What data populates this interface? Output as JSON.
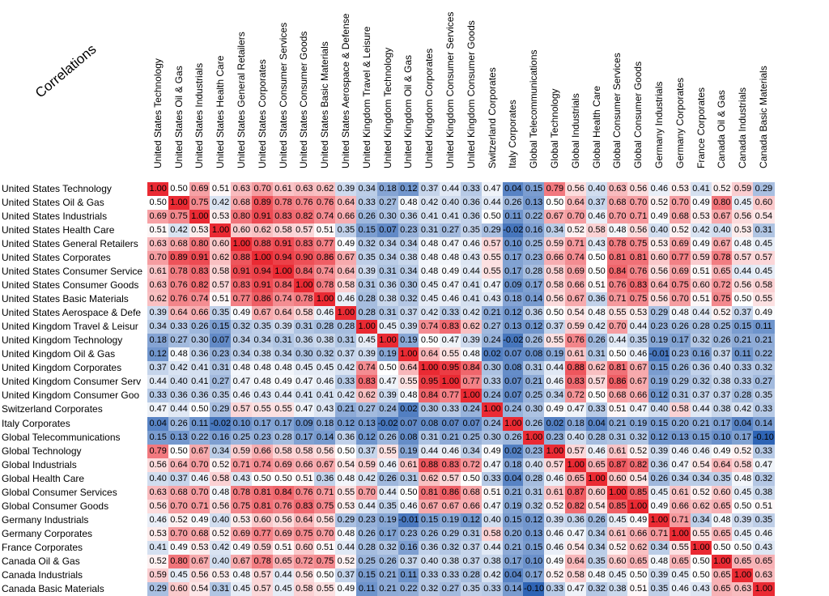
{
  "chart_data": {
    "type": "heatmap",
    "title": "Correlations",
    "color_scale": {
      "low": "#2e64b5",
      "mid": "#ffffff",
      "high": "#ea2a33",
      "min": -0.1,
      "mid_value": 0.5,
      "max": 1.0
    },
    "labels": [
      "United States Technology",
      "United States Oil & Gas",
      "United States Industrials",
      "United States Health Care",
      "United States General Retailers",
      "United States Corporates",
      "United States Consumer Services",
      "United States Consumer Goods",
      "United States Basic Materials",
      "United States Aerospace & Defense",
      "United Kingdom Travel & Leisure",
      "United Kingdom Technology",
      "United Kingdom Oil & Gas",
      "United Kingdom Corporates",
      "United Kingdom Consumer Services",
      "United Kingdom Consumer Goods",
      "Switzerland Corporates",
      "Italy Corporates",
      "Global Telecommunications",
      "Global Technology",
      "Global Industrials",
      "Global Health Care",
      "Global Consumer Services",
      "Global Consumer Goods",
      "Germany Industrials",
      "Germany Corporates",
      "France Corporates",
      "Canada Oil & Gas",
      "Canada Industrials",
      "Canada Basic Materials"
    ],
    "row_labels": [
      "United States Technology",
      "United States Oil & Gas",
      "United States Industrials",
      "United States Health Care",
      "United States General Retailers",
      "United States Corporates",
      "United States Consumer Service",
      "United States Consumer Goods",
      "United States Basic Materials",
      "United States Aerospace & Defe",
      "United Kingdom Travel & Leisur",
      "United Kingdom Technology",
      "United Kingdom Oil & Gas",
      "United Kingdom Corporates",
      "United Kingdom Consumer Serv",
      "United Kingdom Consumer Goo",
      "Switzerland Corporates",
      "Italy Corporates",
      "Global Telecommunications",
      "Global Technology",
      "Global Industrials",
      "Global Health Care",
      "Global Consumer Services",
      "Global Consumer Goods",
      "Germany Industrials",
      "Germany Corporates",
      "France Corporates",
      "Canada Oil & Gas",
      "Canada Industrials",
      "Canada Basic Materials"
    ],
    "values": [
      [
        "1.00",
        "0.50",
        "0.69",
        "0.51",
        "0.63",
        "0.70",
        "0.61",
        "0.63",
        "0.62",
        "0.39",
        "0.34",
        "0.18",
        "0.12",
        "0.37",
        "0.44",
        "0.33",
        "0.47",
        "0.04",
        "0.15",
        "0.79",
        "0.56",
        "0.40",
        "0.63",
        "0.56",
        "0.46",
        "0.53",
        "0.41",
        "0.52",
        "0.59",
        "0.29"
      ],
      [
        "0.50",
        "1.00",
        "0.75",
        "0.42",
        "0.68",
        "0.89",
        "0.78",
        "0.76",
        "0.76",
        "0.64",
        "0.33",
        "0.27",
        "0.48",
        "0.42",
        "0.40",
        "0.36",
        "0.44",
        "0.26",
        "0.13",
        "0.50",
        "0.64",
        "0.37",
        "0.68",
        "0.70",
        "0.52",
        "0.70",
        "0.49",
        "0.80",
        "0.45",
        "0.60"
      ],
      [
        "0.69",
        "0.75",
        "1.00",
        "0.53",
        "0.80",
        "0.91",
        "0.83",
        "0.82",
        "0.74",
        "0.66",
        "0.26",
        "0.30",
        "0.36",
        "0.41",
        "0.41",
        "0.36",
        "0.50",
        "0.11",
        "0.22",
        "0.67",
        "0.70",
        "0.46",
        "0.70",
        "0.71",
        "0.49",
        "0.68",
        "0.53",
        "0.67",
        "0.56",
        "0.54"
      ],
      [
        "0.51",
        "0.42",
        "0.53",
        "1.00",
        "0.60",
        "0.62",
        "0.58",
        "0.57",
        "0.51",
        "0.35",
        "0.15",
        "0.07",
        "0.23",
        "0.31",
        "0.27",
        "0.35",
        "0.29",
        "-0.02",
        "0.16",
        "0.34",
        "0.52",
        "0.58",
        "0.48",
        "0.56",
        "0.40",
        "0.52",
        "0.42",
        "0.40",
        "0.53",
        "0.31"
      ],
      [
        "0.63",
        "0.68",
        "0.80",
        "0.60",
        "1.00",
        "0.88",
        "0.91",
        "0.83",
        "0.77",
        "0.49",
        "0.32",
        "0.34",
        "0.34",
        "0.48",
        "0.47",
        "0.46",
        "0.57",
        "0.10",
        "0.25",
        "0.59",
        "0.71",
        "0.43",
        "0.78",
        "0.75",
        "0.53",
        "0.69",
        "0.49",
        "0.67",
        "0.48",
        "0.45"
      ],
      [
        "0.70",
        "0.89",
        "0.91",
        "0.62",
        "0.88",
        "1.00",
        "0.94",
        "0.90",
        "0.86",
        "0.67",
        "0.35",
        "0.34",
        "0.38",
        "0.48",
        "0.48",
        "0.43",
        "0.55",
        "0.17",
        "0.23",
        "0.66",
        "0.74",
        "0.50",
        "0.81",
        "0.81",
        "0.60",
        "0.77",
        "0.59",
        "0.78",
        "0.57",
        "0.57"
      ],
      [
        "0.61",
        "0.78",
        "0.83",
        "0.58",
        "0.91",
        "0.94",
        "1.00",
        "0.84",
        "0.74",
        "0.64",
        "0.39",
        "0.31",
        "0.34",
        "0.48",
        "0.49",
        "0.44",
        "0.55",
        "0.17",
        "0.28",
        "0.58",
        "0.69",
        "0.50",
        "0.84",
        "0.76",
        "0.56",
        "0.69",
        "0.51",
        "0.65",
        "0.44",
        "0.45"
      ],
      [
        "0.63",
        "0.76",
        "0.82",
        "0.57",
        "0.83",
        "0.91",
        "0.84",
        "1.00",
        "0.78",
        "0.58",
        "0.31",
        "0.36",
        "0.30",
        "0.45",
        "0.47",
        "0.41",
        "0.47",
        "0.09",
        "0.17",
        "0.58",
        "0.66",
        "0.51",
        "0.76",
        "0.83",
        "0.64",
        "0.75",
        "0.60",
        "0.72",
        "0.56",
        "0.58"
      ],
      [
        "0.62",
        "0.76",
        "0.74",
        "0.51",
        "0.77",
        "0.86",
        "0.74",
        "0.78",
        "1.00",
        "0.46",
        "0.28",
        "0.38",
        "0.32",
        "0.45",
        "0.46",
        "0.41",
        "0.43",
        "0.18",
        "0.14",
        "0.56",
        "0.67",
        "0.36",
        "0.71",
        "0.75",
        "0.56",
        "0.70",
        "0.51",
        "0.75",
        "0.50",
        "0.55"
      ],
      [
        "0.39",
        "0.64",
        "0.66",
        "0.35",
        "0.49",
        "0.67",
        "0.64",
        "0.58",
        "0.46",
        "1.00",
        "0.28",
        "0.31",
        "0.37",
        "0.42",
        "0.33",
        "0.42",
        "0.21",
        "0.12",
        "0.36",
        "0.50",
        "0.54",
        "0.48",
        "0.55",
        "0.53",
        "0.29",
        "0.48",
        "0.44",
        "0.52",
        "0.37",
        "0.49"
      ],
      [
        "0.34",
        "0.33",
        "0.26",
        "0.15",
        "0.32",
        "0.35",
        "0.39",
        "0.31",
        "0.28",
        "0.28",
        "1.00",
        "0.45",
        "0.39",
        "0.74",
        "0.83",
        "0.62",
        "0.27",
        "0.13",
        "0.12",
        "0.37",
        "0.59",
        "0.42",
        "0.70",
        "0.44",
        "0.23",
        "0.26",
        "0.28",
        "0.25",
        "0.15",
        "0.11"
      ],
      [
        "0.18",
        "0.27",
        "0.30",
        "0.07",
        "0.34",
        "0.34",
        "0.31",
        "0.36",
        "0.38",
        "0.31",
        "0.45",
        "1.00",
        "0.19",
        "0.50",
        "0.47",
        "0.39",
        "0.24",
        "-0.02",
        "0.26",
        "0.55",
        "0.76",
        "0.26",
        "0.44",
        "0.35",
        "0.19",
        "0.17",
        "0.32",
        "0.26",
        "0.21",
        "0.21"
      ],
      [
        "0.12",
        "0.48",
        "0.36",
        "0.23",
        "0.34",
        "0.38",
        "0.34",
        "0.30",
        "0.32",
        "0.37",
        "0.39",
        "0.19",
        "1.00",
        "0.64",
        "0.55",
        "0.48",
        "0.02",
        "0.07",
        "0.08",
        "0.19",
        "0.61",
        "0.31",
        "0.50",
        "0.46",
        "-0.01",
        "0.23",
        "0.16",
        "0.37",
        "0.11",
        "0.22"
      ],
      [
        "0.37",
        "0.42",
        "0.41",
        "0.31",
        "0.48",
        "0.48",
        "0.48",
        "0.45",
        "0.45",
        "0.42",
        "0.74",
        "0.50",
        "0.64",
        "1.00",
        "0.95",
        "0.84",
        "0.30",
        "0.08",
        "0.31",
        "0.44",
        "0.88",
        "0.62",
        "0.81",
        "0.67",
        "0.15",
        "0.26",
        "0.36",
        "0.40",
        "0.33",
        "0.32"
      ],
      [
        "0.44",
        "0.40",
        "0.41",
        "0.27",
        "0.47",
        "0.48",
        "0.49",
        "0.47",
        "0.46",
        "0.33",
        "0.83",
        "0.47",
        "0.55",
        "0.95",
        "1.00",
        "0.77",
        "0.33",
        "0.07",
        "0.21",
        "0.46",
        "0.83",
        "0.57",
        "0.86",
        "0.67",
        "0.19",
        "0.29",
        "0.32",
        "0.38",
        "0.33",
        "0.27"
      ],
      [
        "0.33",
        "0.36",
        "0.36",
        "0.35",
        "0.46",
        "0.43",
        "0.44",
        "0.41",
        "0.41",
        "0.42",
        "0.62",
        "0.39",
        "0.48",
        "0.84",
        "0.77",
        "1.00",
        "0.24",
        "0.07",
        "0.25",
        "0.34",
        "0.72",
        "0.50",
        "0.68",
        "0.66",
        "0.12",
        "0.31",
        "0.37",
        "0.37",
        "0.28",
        "0.35"
      ],
      [
        "0.47",
        "0.44",
        "0.50",
        "0.29",
        "0.57",
        "0.55",
        "0.55",
        "0.47",
        "0.43",
        "0.21",
        "0.27",
        "0.24",
        "0.02",
        "0.30",
        "0.33",
        "0.24",
        "1.00",
        "0.24",
        "0.30",
        "0.49",
        "0.47",
        "0.33",
        "0.51",
        "0.47",
        "0.40",
        "0.58",
        "0.44",
        "0.38",
        "0.42",
        "0.33"
      ],
      [
        "0.04",
        "0.26",
        "0.11",
        "-0.02",
        "0.10",
        "0.17",
        "0.17",
        "0.09",
        "0.18",
        "0.12",
        "0.13",
        "-0.02",
        "0.07",
        "0.08",
        "0.07",
        "0.07",
        "0.24",
        "1.00",
        "0.26",
        "0.02",
        "0.18",
        "0.04",
        "0.21",
        "0.19",
        "0.15",
        "0.20",
        "0.21",
        "0.17",
        "0.04",
        "0.14"
      ],
      [
        "0.15",
        "0.13",
        "0.22",
        "0.16",
        "0.25",
        "0.23",
        "0.28",
        "0.17",
        "0.14",
        "0.36",
        "0.12",
        "0.26",
        "0.08",
        "0.31",
        "0.21",
        "0.25",
        "0.30",
        "0.26",
        "1.00",
        "0.23",
        "0.40",
        "0.28",
        "0.31",
        "0.32",
        "0.12",
        "0.13",
        "0.15",
        "0.10",
        "0.17",
        "-0.10"
      ],
      [
        "0.79",
        "0.50",
        "0.67",
        "0.34",
        "0.59",
        "0.66",
        "0.58",
        "0.58",
        "0.56",
        "0.50",
        "0.37",
        "0.55",
        "0.19",
        "0.44",
        "0.46",
        "0.34",
        "0.49",
        "0.02",
        "0.23",
        "1.00",
        "0.57",
        "0.46",
        "0.61",
        "0.52",
        "0.39",
        "0.46",
        "0.46",
        "0.49",
        "0.52",
        "0.33"
      ],
      [
        "0.56",
        "0.64",
        "0.70",
        "0.52",
        "0.71",
        "0.74",
        "0.69",
        "0.66",
        "0.67",
        "0.54",
        "0.59",
        "0.46",
        "0.61",
        "0.88",
        "0.83",
        "0.72",
        "0.47",
        "0.18",
        "0.40",
        "0.57",
        "1.00",
        "0.65",
        "0.87",
        "0.82",
        "0.36",
        "0.47",
        "0.54",
        "0.64",
        "0.58",
        "0.47"
      ],
      [
        "0.40",
        "0.37",
        "0.46",
        "0.58",
        "0.43",
        "0.50",
        "0.50",
        "0.51",
        "0.36",
        "0.48",
        "0.42",
        "0.26",
        "0.31",
        "0.62",
        "0.57",
        "0.50",
        "0.33",
        "0.04",
        "0.28",
        "0.46",
        "0.65",
        "1.00",
        "0.60",
        "0.54",
        "0.26",
        "0.34",
        "0.34",
        "0.35",
        "0.48",
        "0.32"
      ],
      [
        "0.63",
        "0.68",
        "0.70",
        "0.48",
        "0.78",
        "0.81",
        "0.84",
        "0.76",
        "0.71",
        "0.55",
        "0.70",
        "0.44",
        "0.50",
        "0.81",
        "0.86",
        "0.68",
        "0.51",
        "0.21",
        "0.31",
        "0.61",
        "0.87",
        "0.60",
        "1.00",
        "0.85",
        "0.45",
        "0.61",
        "0.52",
        "0.60",
        "0.45",
        "0.38"
      ],
      [
        "0.56",
        "0.70",
        "0.71",
        "0.56",
        "0.75",
        "0.81",
        "0.76",
        "0.83",
        "0.75",
        "0.53",
        "0.44",
        "0.35",
        "0.46",
        "0.67",
        "0.67",
        "0.66",
        "0.47",
        "0.19",
        "0.32",
        "0.52",
        "0.82",
        "0.54",
        "0.85",
        "1.00",
        "0.49",
        "0.66",
        "0.62",
        "0.65",
        "0.50",
        "0.51"
      ],
      [
        "0.46",
        "0.52",
        "0.49",
        "0.40",
        "0.53",
        "0.60",
        "0.56",
        "0.64",
        "0.56",
        "0.29",
        "0.23",
        "0.19",
        "-0.01",
        "0.15",
        "0.19",
        "0.12",
        "0.40",
        "0.15",
        "0.12",
        "0.39",
        "0.36",
        "0.26",
        "0.45",
        "0.49",
        "1.00",
        "0.71",
        "0.34",
        "0.48",
        "0.39",
        "0.35"
      ],
      [
        "0.53",
        "0.70",
        "0.68",
        "0.52",
        "0.69",
        "0.77",
        "0.69",
        "0.75",
        "0.70",
        "0.48",
        "0.26",
        "0.17",
        "0.23",
        "0.26",
        "0.29",
        "0.31",
        "0.58",
        "0.20",
        "0.13",
        "0.46",
        "0.47",
        "0.34",
        "0.61",
        "0.66",
        "0.71",
        "1.00",
        "0.55",
        "0.65",
        "0.45",
        "0.46"
      ],
      [
        "0.41",
        "0.49",
        "0.53",
        "0.42",
        "0.49",
        "0.59",
        "0.51",
        "0.60",
        "0.51",
        "0.44",
        "0.28",
        "0.32",
        "0.16",
        "0.36",
        "0.32",
        "0.37",
        "0.44",
        "0.21",
        "0.15",
        "0.46",
        "0.54",
        "0.34",
        "0.52",
        "0.62",
        "0.34",
        "0.55",
        "1.00",
        "0.50",
        "0.50",
        "0.43"
      ],
      [
        "0.52",
        "0.80",
        "0.67",
        "0.40",
        "0.67",
        "0.78",
        "0.65",
        "0.72",
        "0.75",
        "0.52",
        "0.25",
        "0.26",
        "0.37",
        "0.40",
        "0.38",
        "0.37",
        "0.38",
        "0.17",
        "0.10",
        "0.49",
        "0.64",
        "0.35",
        "0.60",
        "0.65",
        "0.48",
        "0.65",
        "0.50",
        "1.00",
        "0.65",
        "0.65"
      ],
      [
        "0.59",
        "0.45",
        "0.56",
        "0.53",
        "0.48",
        "0.57",
        "0.44",
        "0.56",
        "0.50",
        "0.37",
        "0.15",
        "0.21",
        "0.11",
        "0.33",
        "0.33",
        "0.28",
        "0.42",
        "0.04",
        "0.17",
        "0.52",
        "0.58",
        "0.48",
        "0.45",
        "0.50",
        "0.39",
        "0.45",
        "0.50",
        "0.65",
        "1.00",
        "0.63"
      ],
      [
        "0.29",
        "0.60",
        "0.54",
        "0.31",
        "0.45",
        "0.57",
        "0.45",
        "0.58",
        "0.55",
        "0.49",
        "0.11",
        "0.21",
        "0.22",
        "0.32",
        "0.27",
        "0.35",
        "0.33",
        "0.14",
        "-0.10",
        "0.33",
        "0.47",
        "0.32",
        "0.38",
        "0.51",
        "0.35",
        "0.46",
        "0.43",
        "0.65",
        "0.63",
        "1.00"
      ]
    ]
  }
}
